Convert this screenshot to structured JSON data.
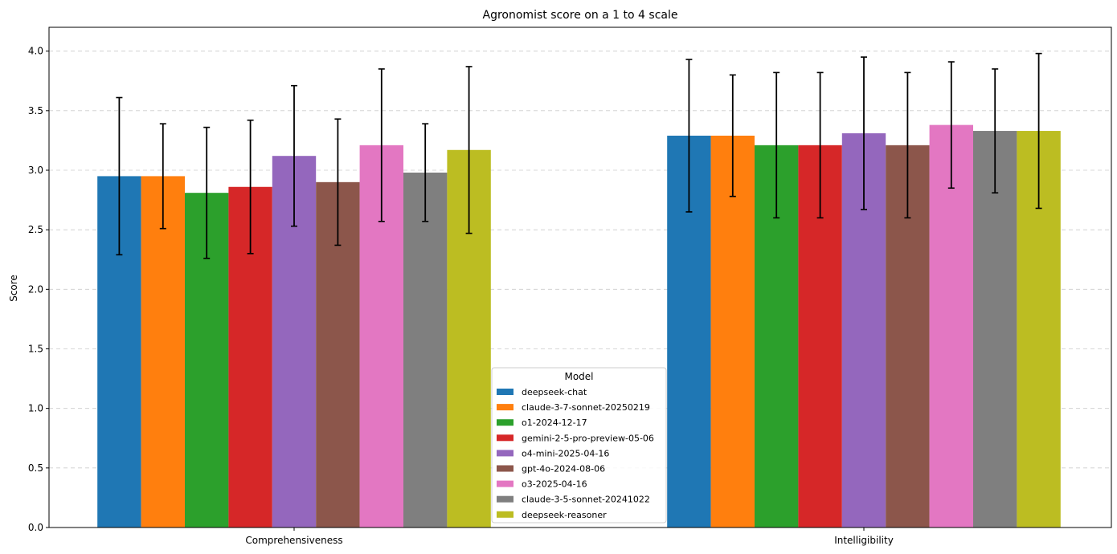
{
  "chart_data": {
    "type": "bar",
    "title": "Agronomist score on a 1 to 4 scale",
    "xlabel": "",
    "ylabel": "Score",
    "ylim": [
      0,
      4.2
    ],
    "yticks": [
      "0.0",
      "0.5",
      "1.0",
      "1.5",
      "2.0",
      "2.5",
      "3.0",
      "3.5",
      "4.0"
    ],
    "grid": "y-dashed",
    "categories": [
      "Comprehensiveness",
      "Intelligibility"
    ],
    "legend": {
      "title": "Model",
      "placement": "lower-center"
    },
    "series": [
      {
        "name": "deepseek-chat",
        "color": "#1f77b4",
        "values": [
          2.95,
          3.29
        ],
        "errors": [
          0.66,
          0.64
        ]
      },
      {
        "name": "claude-3-7-sonnet-20250219",
        "color": "#ff7f0e",
        "values": [
          2.95,
          3.29
        ],
        "errors": [
          0.44,
          0.51
        ]
      },
      {
        "name": "o1-2024-12-17",
        "color": "#2ca02c",
        "values": [
          2.81,
          3.21
        ],
        "errors": [
          0.55,
          0.61
        ]
      },
      {
        "name": "gemini-2-5-pro-preview-05-06",
        "color": "#d62728",
        "values": [
          2.86,
          3.21
        ],
        "errors": [
          0.56,
          0.61
        ]
      },
      {
        "name": "o4-mini-2025-04-16",
        "color": "#9467bd",
        "values": [
          3.12,
          3.31
        ],
        "errors": [
          0.59,
          0.64
        ]
      },
      {
        "name": "gpt-4o-2024-08-06",
        "color": "#8c564b",
        "values": [
          2.9,
          3.21
        ],
        "errors": [
          0.53,
          0.61
        ]
      },
      {
        "name": "o3-2025-04-16",
        "color": "#e377c2",
        "values": [
          3.21,
          3.38
        ],
        "errors": [
          0.64,
          0.53
        ]
      },
      {
        "name": "claude-3-5-sonnet-20241022",
        "color": "#7f7f7f",
        "values": [
          2.98,
          3.33
        ],
        "errors": [
          0.41,
          0.52
        ]
      },
      {
        "name": "deepseek-reasoner",
        "color": "#bcbd22",
        "values": [
          3.17,
          3.33
        ],
        "errors": [
          0.7,
          0.65
        ]
      }
    ]
  }
}
